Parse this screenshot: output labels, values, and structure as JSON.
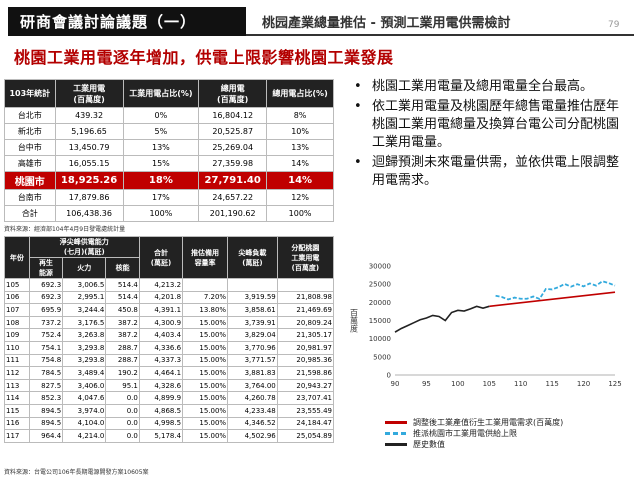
{
  "header": {
    "tab_title": "研商會議討論議題（一）",
    "subtitle": "桃园產業總量推估 - 預測工業用電供需檢討",
    "page_number": "79"
  },
  "main_title": "桃園工業用電逐年增加，供電上限影響桃園工業發展",
  "top_table": {
    "headers": [
      "103年統計",
      "工業用電\n(百萬度)",
      "工業用電占比(%)",
      "總用電\n(百萬度)",
      "總用電占比(%)"
    ],
    "rows": [
      [
        "台北市",
        "439.32",
        "0%",
        "16,804.12",
        "8%"
      ],
      [
        "新北市",
        "5,196.65",
        "5%",
        "20,525.87",
        "10%"
      ],
      [
        "台中市",
        "13,450.79",
        "13%",
        "25,269.04",
        "13%"
      ],
      [
        "高雄市",
        "16,055.15",
        "15%",
        "27,359.98",
        "14%"
      ],
      [
        "桃園市",
        "18,925.26",
        "18%",
        "27,791.40",
        "14%"
      ],
      [
        "台南市",
        "17,879.86",
        "17%",
        "24,657.22",
        "12%"
      ],
      [
        "合計",
        "106,438.36",
        "100%",
        "201,190.62",
        "100%"
      ]
    ],
    "highlight_index": 4,
    "source": "資料來源：經濟部104年4月9日發電處統計量"
  },
  "bottom_table": {
    "h_year": "年份",
    "h_net": "淨尖峰供電能力\n(七月)(萬瓩)",
    "h_renew": "再生\n能源",
    "h_thermal": "火力",
    "h_nuclear": "核能",
    "h_total": "合計\n(萬瓩)",
    "h_reserve": "推估備用\n容量率",
    "h_peak": "尖峰負載\n(萬瓩)",
    "h_alloc": "分配桃園\n工業用電\n(百萬度)",
    "rows": [
      [
        "105",
        "692.3",
        "3,006.5",
        "514.4",
        "4,213.2",
        "",
        "",
        ""
      ],
      [
        "106",
        "692.3",
        "2,995.1",
        "514.4",
        "4,201.8",
        "7.20%",
        "3,919.59",
        "21,808.98"
      ],
      [
        "107",
        "695.9",
        "3,244.4",
        "450.8",
        "4,391.1",
        "13.80%",
        "3,858.61",
        "21,469.69"
      ],
      [
        "108",
        "737.2",
        "3,176.5",
        "387.2",
        "4,300.9",
        "15.00%",
        "3,739.91",
        "20,809.24"
      ],
      [
        "109",
        "752.4",
        "3,263.8",
        "387.2",
        "4,403.4",
        "15.00%",
        "3,829.04",
        "21,305.17"
      ],
      [
        "110",
        "754.1",
        "3,293.8",
        "288.7",
        "4,336.6",
        "15.00%",
        "3,770.96",
        "20,981.97"
      ],
      [
        "111",
        "754.8",
        "3,293.8",
        "288.7",
        "4,337.3",
        "15.00%",
        "3,771.57",
        "20,985.36"
      ],
      [
        "112",
        "784.5",
        "3,489.4",
        "190.2",
        "4,464.1",
        "15.00%",
        "3,881.83",
        "21,598.86"
      ],
      [
        "113",
        "827.5",
        "3,406.0",
        "95.1",
        "4,328.6",
        "15.00%",
        "3,764.00",
        "20,943.27"
      ],
      [
        "114",
        "852.3",
        "4,047.6",
        "0.0",
        "4,899.9",
        "15.00%",
        "4,260.78",
        "23,707.41"
      ],
      [
        "115",
        "894.5",
        "3,974.0",
        "0.0",
        "4,868.5",
        "15.00%",
        "4,233.48",
        "23,555.49"
      ],
      [
        "116",
        "894.5",
        "4,104.0",
        "0.0",
        "4,998.5",
        "15.00%",
        "4,346.52",
        "24,184.47"
      ],
      [
        "117",
        "964.4",
        "4,214.0",
        "0.0",
        "5,178.4",
        "15.00%",
        "4,502.96",
        "25,054.89"
      ]
    ],
    "source": "資料來源：台電公司106年長期電源開發方案10605案"
  },
  "bullets": [
    "桃園工業用電量及總用電量全台最高。",
    "依工業用電量及桃園歷年總售電量推估歷年桃園工業用電總量及換算台電公司分配桃園工業用電量。",
    "迴歸預測未來電量供需，並依供電上限調整用電需求。"
  ],
  "chart_data": {
    "type": "line",
    "ylabel": "百萬度",
    "xlim": [
      90,
      125
    ],
    "ylim": [
      0,
      30000
    ],
    "xticks": [
      90,
      95,
      100,
      105,
      110,
      115,
      120,
      125
    ],
    "yticks": [
      0,
      5000,
      10000,
      15000,
      20000,
      25000,
      30000
    ],
    "series": [
      {
        "name": "調整後工業產值衍生工業用電需求(百萬度)",
        "color": "#c00000",
        "style": "solid",
        "x": [
          105,
          125
        ],
        "y": [
          18900,
          22800
        ]
      },
      {
        "name": "推派桃園市工業用電供給上限",
        "color": "#33aadd",
        "style": "dashed",
        "x": [
          106,
          107,
          108,
          109,
          110,
          111,
          112,
          113,
          114,
          115,
          116,
          117,
          118,
          119,
          120,
          121,
          122,
          123,
          124,
          125
        ],
        "y": [
          21800,
          21470,
          20800,
          21300,
          20980,
          20990,
          21600,
          20940,
          23700,
          23550,
          24180,
          25050,
          24300,
          25000,
          24400,
          25200,
          24600,
          25800,
          25300,
          24600
        ]
      },
      {
        "name": "歷史數值",
        "color": "#222222",
        "style": "solid",
        "x": [
          90,
          91,
          92,
          93,
          94,
          95,
          96,
          97,
          98,
          99,
          100,
          101,
          102,
          103,
          104,
          105
        ],
        "y": [
          11800,
          12800,
          13600,
          14400,
          15200,
          15700,
          16400,
          16100,
          15000,
          17200,
          17800,
          17600,
          18200,
          18900,
          18400,
          18900
        ]
      }
    ]
  }
}
